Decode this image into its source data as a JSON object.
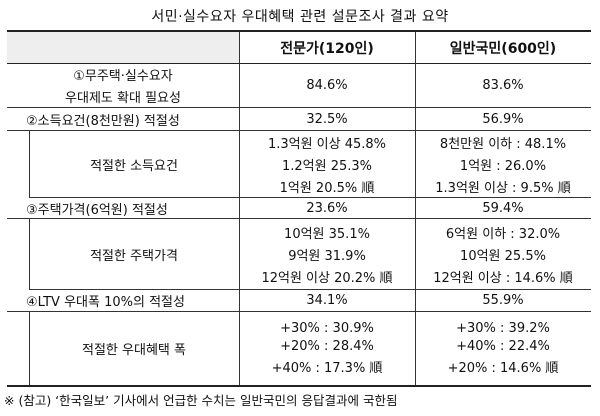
{
  "title": "서민·실수요자 우대혜택 관련 설문조사 결과 요약",
  "header": {
    "col1": "전문가(120인)",
    "col2": "일반국민(600인)"
  },
  "row1": {
    "label_line1": "①무주택·실수요자",
    "label_line2": "우대제도 확대 필요성",
    "expert": "84.6%",
    "public": "83.6%"
  },
  "row2": {
    "label": "②소득요건(8천만원) 적절성",
    "expert": "32.5%",
    "public": "56.9%"
  },
  "row2sub": {
    "label": "적절한 소득요건",
    "expert": [
      "1.3억원 이상 45.8%",
      "1.2억원 25.3%",
      "1억원 20.5% 順"
    ],
    "public": [
      "8천만원 이하 : 48.1%",
      "1억원 : 26.0%",
      "1.3억원 이상 : 9.5% 順"
    ]
  },
  "row3": {
    "label": "③주택가격(6억원) 적절성",
    "expert": "23.6%",
    "public": "59.4%"
  },
  "row3sub": {
    "label": "적절한 주택가격",
    "expert": [
      "10억원 35.1%",
      "9억원 31.9%",
      "12억원 이상 20.2% 順"
    ],
    "public": [
      "6억원 이하 : 32.0%",
      "10억원 25.5%",
      "12억원 이상 : 14.6% 順"
    ]
  },
  "row4": {
    "label": "④LTV 우대폭 10%의 적절성",
    "expert": "34.1%",
    "public": "55.9%"
  },
  "row4sub": {
    "label": "적절한 우대혜택 폭",
    "expert": [
      "+30% : 30.9%",
      "+20% : 28.4%",
      "+40% : 17.3% 順"
    ],
    "public": [
      "+30% : 39.2%",
      "+40% : 22.4%",
      "+20% : 14.6% 順"
    ]
  },
  "footnote": "※ (참고) ‘한국일보’ 기사에서 언급한 수치는 일반국민의 응답결과에 국한됨"
}
